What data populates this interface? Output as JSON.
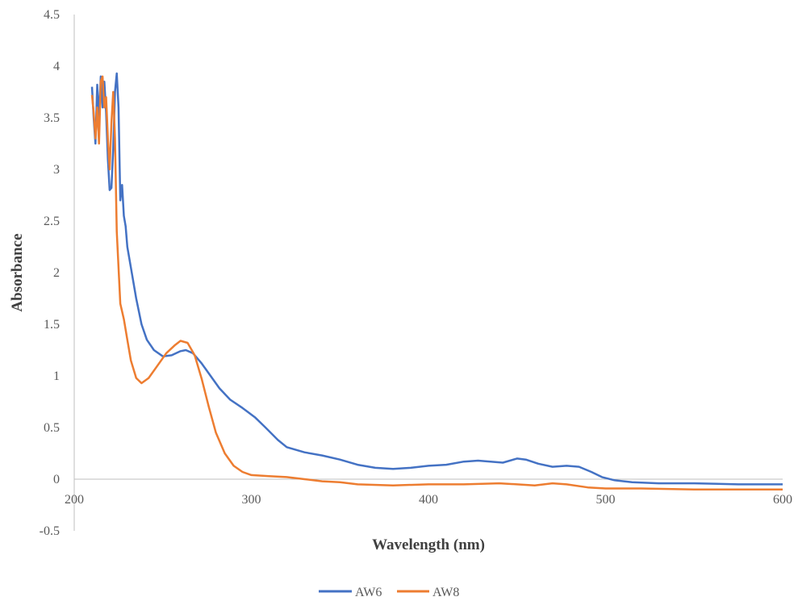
{
  "chart_data": {
    "type": "line",
    "title": "",
    "xlabel": "Wavelength (nm)",
    "ylabel": "Absorbance",
    "xlim": [
      200,
      600
    ],
    "ylim": [
      -0.5,
      4.5
    ],
    "xticks": [
      200,
      300,
      400,
      500,
      600
    ],
    "xtick_labels": [
      "200",
      "300",
      "400",
      "500",
      "600"
    ],
    "yticks": [
      -0.5,
      0,
      0.5,
      1,
      1.5,
      2,
      2.5,
      3,
      3.5,
      4,
      4.5
    ],
    "ytick_labels": [
      "-0.5",
      "0",
      "0.5",
      "1",
      "1.5",
      "2",
      "2.5",
      "3",
      "3.5",
      "4",
      "4.5"
    ],
    "grid": false,
    "legend_position": "bottom",
    "colors": {
      "AW6": "#4472C4",
      "AW8": "#ED7D31"
    },
    "series": [
      {
        "name": "AW6",
        "points": [
          [
            210,
            3.8
          ],
          [
            211,
            3.5
          ],
          [
            212,
            3.25
          ],
          [
            213,
            3.82
          ],
          [
            214,
            3.5
          ],
          [
            215,
            3.9
          ],
          [
            216,
            3.6
          ],
          [
            217,
            3.85
          ],
          [
            218,
            3.55
          ],
          [
            219,
            3.1
          ],
          [
            220,
            2.8
          ],
          [
            221,
            2.82
          ],
          [
            222,
            3.2
          ],
          [
            223,
            3.75
          ],
          [
            224,
            3.93
          ],
          [
            225,
            3.6
          ],
          [
            226,
            2.7
          ],
          [
            227,
            2.85
          ],
          [
            228,
            2.55
          ],
          [
            229,
            2.45
          ],
          [
            230,
            2.25
          ],
          [
            232,
            2.05
          ],
          [
            235,
            1.75
          ],
          [
            238,
            1.5
          ],
          [
            241,
            1.35
          ],
          [
            245,
            1.25
          ],
          [
            250,
            1.19
          ],
          [
            255,
            1.2
          ],
          [
            260,
            1.24
          ],
          [
            263,
            1.25
          ],
          [
            267,
            1.22
          ],
          [
            272,
            1.12
          ],
          [
            277,
            1.0
          ],
          [
            282,
            0.88
          ],
          [
            288,
            0.77
          ],
          [
            295,
            0.69
          ],
          [
            302,
            0.6
          ],
          [
            308,
            0.5
          ],
          [
            315,
            0.38
          ],
          [
            320,
            0.31
          ],
          [
            330,
            0.26
          ],
          [
            340,
            0.23
          ],
          [
            350,
            0.19
          ],
          [
            360,
            0.14
          ],
          [
            370,
            0.11
          ],
          [
            380,
            0.1
          ],
          [
            390,
            0.11
          ],
          [
            400,
            0.13
          ],
          [
            410,
            0.14
          ],
          [
            420,
            0.17
          ],
          [
            428,
            0.18
          ],
          [
            435,
            0.17
          ],
          [
            442,
            0.16
          ],
          [
            450,
            0.2
          ],
          [
            455,
            0.19
          ],
          [
            462,
            0.15
          ],
          [
            470,
            0.12
          ],
          [
            478,
            0.13
          ],
          [
            485,
            0.12
          ],
          [
            492,
            0.07
          ],
          [
            498,
            0.02
          ],
          [
            505,
            -0.01
          ],
          [
            515,
            -0.03
          ],
          [
            530,
            -0.04
          ],
          [
            550,
            -0.04
          ],
          [
            575,
            -0.05
          ],
          [
            600,
            -0.05
          ]
        ]
      },
      {
        "name": "AW8",
        "points": [
          [
            210,
            3.72
          ],
          [
            211,
            3.55
          ],
          [
            212,
            3.3
          ],
          [
            213,
            3.6
          ],
          [
            214,
            3.25
          ],
          [
            215,
            3.85
          ],
          [
            216,
            3.9
          ],
          [
            217,
            3.6
          ],
          [
            218,
            3.7
          ],
          [
            219,
            3.3
          ],
          [
            220,
            3.0
          ],
          [
            221,
            3.45
          ],
          [
            222,
            3.75
          ],
          [
            223,
            3.3
          ],
          [
            224,
            2.4
          ],
          [
            225,
            2.05
          ],
          [
            226,
            1.7
          ],
          [
            228,
            1.55
          ],
          [
            230,
            1.35
          ],
          [
            232,
            1.15
          ],
          [
            235,
            0.98
          ],
          [
            238,
            0.93
          ],
          [
            242,
            0.98
          ],
          [
            247,
            1.1
          ],
          [
            252,
            1.22
          ],
          [
            257,
            1.3
          ],
          [
            260,
            1.34
          ],
          [
            264,
            1.32
          ],
          [
            268,
            1.2
          ],
          [
            272,
            0.97
          ],
          [
            276,
            0.7
          ],
          [
            280,
            0.45
          ],
          [
            285,
            0.25
          ],
          [
            290,
            0.13
          ],
          [
            295,
            0.07
          ],
          [
            300,
            0.04
          ],
          [
            310,
            0.03
          ],
          [
            320,
            0.02
          ],
          [
            330,
            0.0
          ],
          [
            340,
            -0.02
          ],
          [
            350,
            -0.03
          ],
          [
            360,
            -0.05
          ],
          [
            380,
            -0.06
          ],
          [
            400,
            -0.05
          ],
          [
            420,
            -0.05
          ],
          [
            440,
            -0.04
          ],
          [
            450,
            -0.05
          ],
          [
            460,
            -0.06
          ],
          [
            470,
            -0.04
          ],
          [
            478,
            -0.05
          ],
          [
            490,
            -0.08
          ],
          [
            500,
            -0.09
          ],
          [
            520,
            -0.09
          ],
          [
            550,
            -0.1
          ],
          [
            575,
            -0.1
          ],
          [
            600,
            -0.1
          ]
        ]
      }
    ]
  }
}
